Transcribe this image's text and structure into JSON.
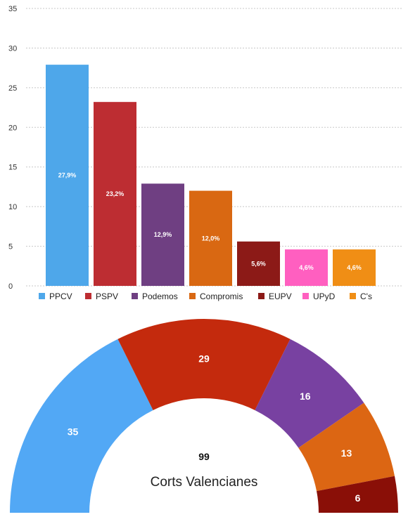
{
  "chart_data": [
    {
      "type": "bar",
      "categories": [
        "PPCV",
        "PSPV",
        "Podemos",
        "Compromis",
        "EUPV",
        "UPyD",
        "C's"
      ],
      "values": [
        27.9,
        23.2,
        12.9,
        12.0,
        5.6,
        4.6,
        4.6
      ],
      "data_labels": [
        "27,9%",
        "23,2%",
        "12,9%",
        "12,0%",
        "5,6%",
        "4,6%",
        "4,6%"
      ],
      "colors": [
        "#4ea7ea",
        "#bd2d32",
        "#6f3f82",
        "#d96812",
        "#8c1a17",
        "#ff5fc0",
        "#f08e15"
      ],
      "ylim": [
        0,
        35
      ],
      "yticks": [
        "0",
        "5",
        "10",
        "15",
        "20",
        "25",
        "30",
        "35"
      ],
      "grid": true,
      "legend": "bottom",
      "title": "",
      "xlabel": "",
      "ylabel": ""
    },
    {
      "type": "pie",
      "subtype": "parliament-semicircle",
      "categories": [
        "PPCV",
        "PSPV",
        "Podemos",
        "Compromis",
        "EUPV"
      ],
      "values": [
        35,
        29,
        16,
        13,
        6
      ],
      "value_labels": [
        "35",
        "29",
        "16",
        "13",
        "6"
      ],
      "colors": [
        "#52a8f5",
        "#c42a0d",
        "#7841a1",
        "#dc6613",
        "#8a0f07"
      ],
      "total": "99",
      "label": "Corts Valencianes"
    }
  ]
}
